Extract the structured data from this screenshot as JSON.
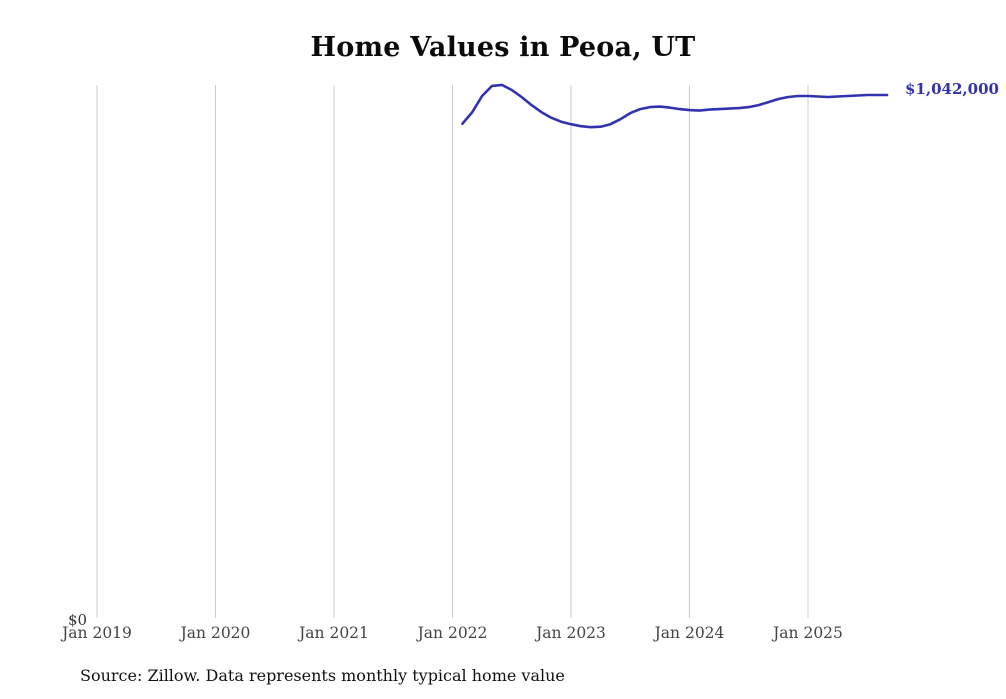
{
  "title": "Home Values in Peoa, UT",
  "source_note": "Source: Zillow. Data represents monthly typical home value",
  "y_zero_label": "$0",
  "end_label": "$1,042,000",
  "colors": {
    "line": "#3232b0",
    "grid": "#cccccc",
    "tick_text": "#444444",
    "title_text": "#0a0a0a",
    "end_label_text": "#3232b0"
  },
  "chart_data": {
    "type": "line",
    "title": "Home Values in Peoa, UT",
    "xlabel": "",
    "ylabel": "",
    "grid": "vertical-only",
    "legend": false,
    "ylim": [
      0,
      1150000
    ],
    "y_axis_min_label": "$0",
    "x_ticks": [
      "Jan 2019",
      "Jan 2020",
      "Jan 2021",
      "Jan 2022",
      "Jan 2023",
      "Jan 2024",
      "Jan 2025"
    ],
    "x_tick_years": [
      2019,
      2020,
      2021,
      2022,
      2023,
      2024,
      2025
    ],
    "last_value_label": "$1,042,000",
    "series": [
      {
        "name": "Monthly typical home value",
        "dates": [
          "2022-02",
          "2022-03",
          "2022-04",
          "2022-05",
          "2022-06",
          "2022-07",
          "2022-08",
          "2022-09",
          "2022-10",
          "2022-11",
          "2022-12",
          "2023-01",
          "2023-02",
          "2023-03",
          "2023-04",
          "2023-05",
          "2023-06",
          "2023-07",
          "2023-08",
          "2023-09",
          "2023-10",
          "2023-11",
          "2023-12",
          "2024-01",
          "2024-02",
          "2024-03",
          "2024-04",
          "2024-05",
          "2024-06",
          "2024-07",
          "2024-08",
          "2024-09",
          "2024-10",
          "2024-11",
          "2024-12",
          "2025-01",
          "2025-02",
          "2025-03",
          "2025-04",
          "2025-05",
          "2025-06",
          "2025-07",
          "2025-08",
          "2025-09"
        ],
        "values": [
          985000,
          1008000,
          1040000,
          1060000,
          1062000,
          1052000,
          1038000,
          1022000,
          1008000,
          997000,
          989000,
          984000,
          980000,
          978000,
          979000,
          984000,
          994000,
          1006000,
          1014000,
          1018000,
          1019000,
          1017000,
          1014000,
          1012000,
          1011000,
          1013000,
          1014000,
          1015000,
          1016000,
          1018000,
          1022000,
          1028000,
          1034000,
          1038000,
          1040000,
          1040000,
          1039000,
          1038000,
          1039000,
          1040000,
          1041000,
          1042000,
          1042000,
          1042000
        ]
      }
    ]
  }
}
